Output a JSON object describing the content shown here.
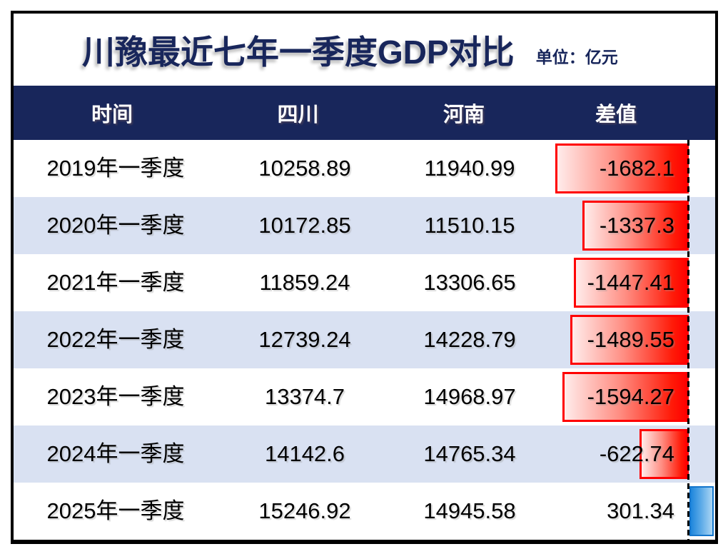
{
  "title": {
    "text": "川豫最近七年一季度GDP对比",
    "unit_label": "单位：亿元"
  },
  "colors": {
    "navy_header": "#18265B",
    "alt_row_blue": "#D9E1F2",
    "frame_border": "#000000",
    "negative_bar_red": "#FF0000",
    "positive_bar_blue": "#1E86DC",
    "positive_bar_border": "#1476CC",
    "header_text": "#FFFFFF",
    "body_text": "#000000"
  },
  "chart_data": {
    "type": "table",
    "title": "川豫最近七年一季度GDP对比",
    "unit": "亿元",
    "columns": [
      "时间",
      "四川",
      "河南",
      "差值"
    ],
    "rows": [
      {
        "time": "2019年一季度",
        "sichuan": "10258.89",
        "henan": "11940.99",
        "diff": "-1682.1",
        "diff_value": -1682.1
      },
      {
        "time": "2020年一季度",
        "sichuan": "10172.85",
        "henan": "11510.15",
        "diff": "-1337.3",
        "diff_value": -1337.3
      },
      {
        "time": "2021年一季度",
        "sichuan": "11859.24",
        "henan": "13306.65",
        "diff": "-1447.41",
        "diff_value": -1447.41
      },
      {
        "time": "2022年一季度",
        "sichuan": "12739.24",
        "henan": "14228.79",
        "diff": "-1489.55",
        "diff_value": -1489.55
      },
      {
        "time": "2023年一季度",
        "sichuan": "13374.7",
        "henan": "14968.97",
        "diff": "-1594.27",
        "diff_value": -1594.27
      },
      {
        "time": "2024年一季度",
        "sichuan": "14142.6",
        "henan": "14765.34",
        "diff": "-622.74",
        "diff_value": -622.74
      },
      {
        "time": "2025年一季度",
        "sichuan": "15246.92",
        "henan": "14945.58",
        "diff": "301.34",
        "diff_value": 301.34
      }
    ],
    "databar": {
      "column": "差值",
      "style": "excel-gradient-databar",
      "negative_direction": "left-of-dashed-axis",
      "positive_direction": "right-of-dashed-axis",
      "min": -1682.1,
      "max": 301.34
    }
  }
}
